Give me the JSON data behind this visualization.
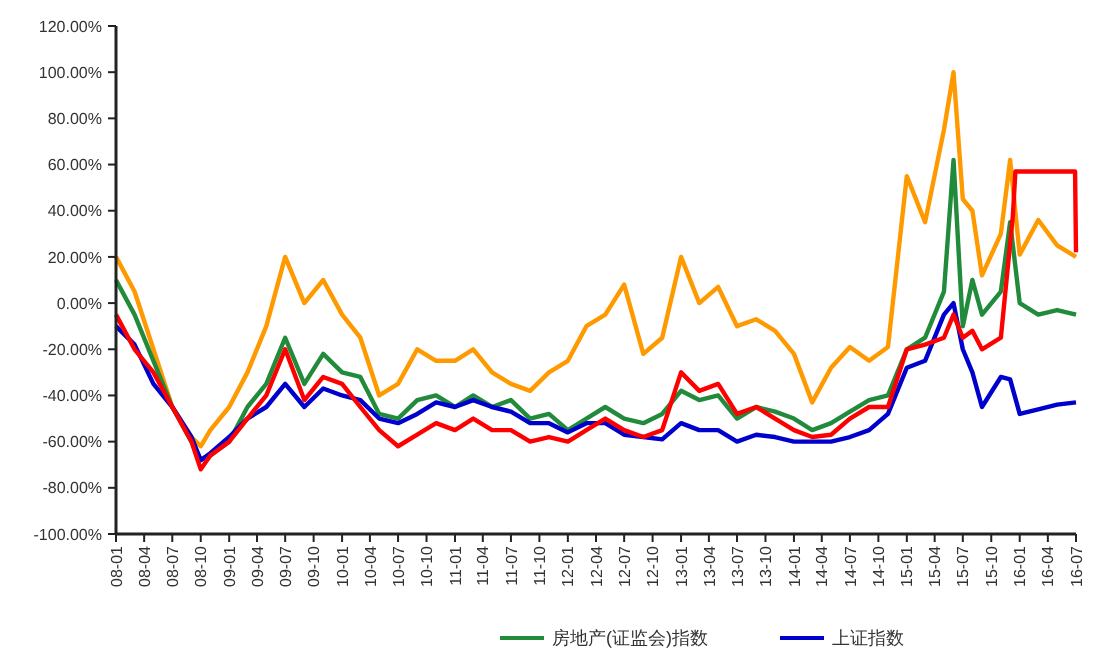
{
  "chart_data": {
    "type": "line",
    "legend": "bottom",
    "grid": false,
    "marker": "none",
    "line_style": "solid",
    "x": [
      "2008-01",
      "2008-03",
      "2008-05",
      "2008-07",
      "2008-09",
      "2008-10",
      "2008-11",
      "2009-01",
      "2009-03",
      "2009-05",
      "2009-07",
      "2009-09",
      "2009-11",
      "2010-01",
      "2010-03",
      "2010-05",
      "2010-07",
      "2010-09",
      "2010-11",
      "2011-01",
      "2011-03",
      "2011-05",
      "2011-07",
      "2011-09",
      "2011-11",
      "2012-01",
      "2012-03",
      "2012-05",
      "2012-07",
      "2012-09",
      "2012-11",
      "2013-01",
      "2013-03",
      "2013-05",
      "2013-07",
      "2013-09",
      "2013-11",
      "2014-01",
      "2014-03",
      "2014-05",
      "2014-07",
      "2014-09",
      "2014-11",
      "2015-01",
      "2015-03",
      "2015-05",
      "2015-06",
      "2015-07",
      "2015-08",
      "2015-09",
      "2015-11",
      "2015-12",
      "2016-01",
      "2016-03",
      "2016-05",
      "2016-07"
    ],
    "xlim": [
      "2008-01",
      "2016-07"
    ],
    "xticks": [
      {
        "value": "2008-01",
        "label": "08-01"
      },
      {
        "value": "2008-04",
        "label": "08-04"
      },
      {
        "value": "2008-07",
        "label": "08-07"
      },
      {
        "value": "2008-10",
        "label": "08-10"
      },
      {
        "value": "2009-01",
        "label": "09-01"
      },
      {
        "value": "2009-04",
        "label": "09-04"
      },
      {
        "value": "2009-07",
        "label": "09-07"
      },
      {
        "value": "2009-10",
        "label": "09-10"
      },
      {
        "value": "2010-01",
        "label": "10-01"
      },
      {
        "value": "2010-04",
        "label": "10-04"
      },
      {
        "value": "2010-07",
        "label": "10-07"
      },
      {
        "value": "2010-10",
        "label": "10-10"
      },
      {
        "value": "2011-01",
        "label": "11-01"
      },
      {
        "value": "2011-04",
        "label": "11-04"
      },
      {
        "value": "2011-07",
        "label": "11-07"
      },
      {
        "value": "2011-10",
        "label": "11-10"
      },
      {
        "value": "2012-01",
        "label": "12-01"
      },
      {
        "value": "2012-04",
        "label": "12-04"
      },
      {
        "value": "2012-07",
        "label": "12-07"
      },
      {
        "value": "2012-10",
        "label": "12-10"
      },
      {
        "value": "2013-01",
        "label": "13-01"
      },
      {
        "value": "2013-04",
        "label": "13-04"
      },
      {
        "value": "2013-07",
        "label": "13-07"
      },
      {
        "value": "2013-10",
        "label": "13-10"
      },
      {
        "value": "2014-01",
        "label": "14-01"
      },
      {
        "value": "2014-04",
        "label": "14-04"
      },
      {
        "value": "2014-07",
        "label": "14-07"
      },
      {
        "value": "2014-10",
        "label": "14-10"
      },
      {
        "value": "2015-01",
        "label": "15-01"
      },
      {
        "value": "2015-04",
        "label": "15-04"
      },
      {
        "value": "2015-07",
        "label": "15-07"
      },
      {
        "value": "2015-10",
        "label": "15-10"
      },
      {
        "value": "2016-01",
        "label": "16-01"
      },
      {
        "value": "2016-04",
        "label": "16-04"
      },
      {
        "value": "2016-07",
        "label": "16-07"
      }
    ],
    "ylim": [
      -100,
      120
    ],
    "yticks": [
      {
        "value": -100,
        "label": "-100.00%"
      },
      {
        "value": -80,
        "label": "-80.00%"
      },
      {
        "value": -60,
        "label": "-60.00%"
      },
      {
        "value": -40,
        "label": "-40.00%"
      },
      {
        "value": -20,
        "label": "-20.00%"
      },
      {
        "value": 0,
        "label": "0.00%"
      },
      {
        "value": 20,
        "label": "20.00%"
      },
      {
        "value": 40,
        "label": "40.00%"
      },
      {
        "value": 60,
        "label": "60.00%"
      },
      {
        "value": 80,
        "label": "80.00%"
      },
      {
        "value": 100,
        "label": "100.00%"
      },
      {
        "value": 120,
        "label": "120.00%"
      }
    ],
    "series": [
      {
        "color": "#ff9900",
        "values": [
          20,
          5,
          -20,
          -45,
          -58,
          -62,
          -55,
          -45,
          -30,
          -10,
          20,
          0,
          10,
          -5,
          -15,
          -40,
          -35,
          -20,
          -25,
          -25,
          -20,
          -30,
          -35,
          -38,
          -30,
          -25,
          -10,
          -5,
          8,
          -22,
          -15,
          20,
          0,
          7,
          -10,
          -7,
          -12,
          -22,
          -43,
          -28,
          -19,
          -25,
          -19,
          55,
          35,
          75,
          100,
          45,
          40,
          12,
          30,
          62,
          21,
          36,
          25,
          20
        ]
      },
      {
        "color": "#228b3b",
        "name": "房地产(证监会)指数",
        "values": [
          10,
          -5,
          -25,
          -45,
          -60,
          -68,
          -66,
          -60,
          -45,
          -35,
          -15,
          -35,
          -22,
          -30,
          -32,
          -48,
          -50,
          -42,
          -40,
          -45,
          -40,
          -45,
          -42,
          -50,
          -48,
          -55,
          -50,
          -45,
          -50,
          -52,
          -48,
          -38,
          -42,
          -40,
          -50,
          -45,
          -47,
          -50,
          -55,
          -52,
          -47,
          -42,
          -40,
          -20,
          -15,
          5,
          62,
          -10,
          10,
          -5,
          5,
          35,
          0,
          -5,
          -3,
          -5
        ]
      },
      {
        "color": "#0000cc",
        "name": "上证指数",
        "values": [
          -10,
          -18,
          -35,
          -45,
          -58,
          -68,
          -65,
          -58,
          -50,
          -45,
          -35,
          -45,
          -37,
          -40,
          -42,
          -50,
          -52,
          -48,
          -43,
          -45,
          -42,
          -45,
          -47,
          -52,
          -52,
          -56,
          -52,
          -52,
          -57,
          -58,
          -59,
          -52,
          -55,
          -55,
          -60,
          -57,
          -58,
          -60,
          -60,
          -60,
          -58,
          -55,
          -48,
          -28,
          -25,
          -5,
          0,
          -20,
          -30,
          -45,
          -32,
          -33,
          -48,
          -46,
          -44,
          -43
        ]
      },
      {
        "color": "#ff0000",
        "x": [
          "2008-01",
          "2008-03",
          "2008-05",
          "2008-07",
          "2008-09",
          "2008-10",
          "2008-11",
          "2009-01",
          "2009-03",
          "2009-05",
          "2009-07",
          "2009-09",
          "2009-11",
          "2010-01",
          "2010-03",
          "2010-05",
          "2010-07",
          "2010-09",
          "2010-11",
          "2011-01",
          "2011-03",
          "2011-05",
          "2011-07",
          "2011-09",
          "2011-11",
          "2012-01",
          "2012-03",
          "2012-05",
          "2012-07",
          "2012-09",
          "2012-11",
          "2013-01",
          "2013-03",
          "2013-05",
          "2013-07",
          "2013-09",
          "2013-11",
          "2014-01",
          "2014-03",
          "2014-05",
          "2014-07",
          "2014-09",
          "2014-11",
          "2015-01",
          "2015-03",
          "2015-05",
          "2015-06",
          "2015-07",
          "2015-08",
          "2015-09",
          "2015-11",
          "2015-12-10",
          "2015-12-18",
          "2016-06-28",
          "2016-07"
        ],
        "values": [
          -5,
          -20,
          -30,
          -45,
          -60,
          -72,
          -66,
          -60,
          -50,
          -40,
          -20,
          -42,
          -32,
          -35,
          -45,
          -55,
          -62,
          -57,
          -52,
          -55,
          -50,
          -55,
          -55,
          -60,
          -58,
          -60,
          -55,
          -50,
          -55,
          -58,
          -55,
          -30,
          -38,
          -35,
          -48,
          -45,
          -50,
          -55,
          -58,
          -57,
          -50,
          -45,
          -45,
          -20,
          -18,
          -15,
          -5,
          -15,
          -12,
          -20,
          -15,
          38,
          57,
          57,
          22
        ]
      }
    ]
  }
}
